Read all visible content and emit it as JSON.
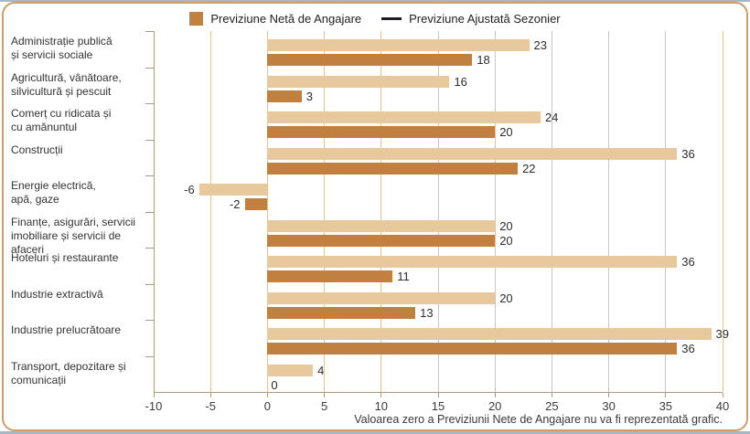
{
  "legend": {
    "items": [
      {
        "label": "Previziune Netă de Angajare",
        "swatch": "square",
        "color": "#c17f40"
      },
      {
        "label": "Previziune Ajustată Sezonier",
        "swatch": "line",
        "color": "#1d1d26"
      }
    ]
  },
  "chart_data": {
    "type": "bar",
    "orientation": "horizontal",
    "categories": [
      "Administrație publică și servicii sociale",
      "Agricultură, vânătoare, silvicultură și pescuit",
      "Comerț cu ridicata și cu amănuntul",
      "Construcții",
      "Energie electrică, apă, gaze",
      "Finanțe, asigurări, servicii imobiliare și servicii de afaceri",
      "Hoteluri și restaurante",
      "Industrie extractivă",
      "Industrie prelucrătoare",
      "Transport, depozitare și comunicații"
    ],
    "categories_lines": [
      [
        "Administrație publică",
        "și servicii sociale"
      ],
      [
        "Agricultură, vânătoare,",
        "silvicultură și pescuit"
      ],
      [
        "Comerț cu ridicata și",
        "cu amănuntul"
      ],
      [
        "Construcții"
      ],
      [
        "Energie electrică,",
        "apă, gaze"
      ],
      [
        "Finanțe, asigurări, servicii",
        "imobiliare și servicii de afaceri"
      ],
      [
        "Hoteluri și restaurante"
      ],
      [
        "Industrie extractivă"
      ],
      [
        "Industrie prelucrătoare"
      ],
      [
        "Transport, depozitare și",
        "comunicații"
      ]
    ],
    "series": [
      {
        "name": "Previziune Ajustată Sezonier",
        "color": "#e8c99e",
        "values": [
          23,
          16,
          24,
          36,
          -6,
          20,
          36,
          20,
          39,
          4
        ]
      },
      {
        "name": "Previziune Netă de Angajare",
        "color": "#c17f40",
        "values": [
          18,
          3,
          20,
          22,
          -2,
          20,
          11,
          13,
          36,
          0
        ],
        "zero_not_drawn": true
      }
    ],
    "xlim": [
      -10,
      40
    ],
    "xticks": [
      -10,
      -5,
      0,
      5,
      10,
      15,
      20,
      25,
      30,
      35,
      40
    ],
    "grid": true,
    "legend_position": "top"
  },
  "footnote": "Valoarea zero a Previziunii Nete de Angajare nu va fi reprezentată grafic.",
  "colors": {
    "card_border": "#cf9e68",
    "grid_line": "#d5c5a2",
    "axis_line": "#a99b7f",
    "bar_light": "#e8c99e",
    "bar_dark": "#c17f40",
    "legend_line": "#1d1d26",
    "text": "#333333"
  }
}
